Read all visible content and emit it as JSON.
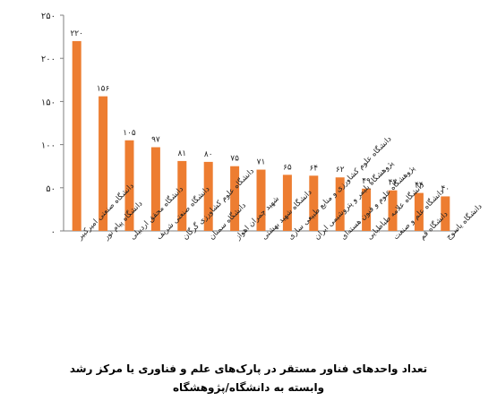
{
  "chart_data": {
    "type": "bar",
    "title": "تعداد واحدهای فناور مستقر در پارک‌های علم و فناوری یا مرکز رشد",
    "subtitle": "وابسته به دانشگاه/پژوهشگاه",
    "xlabel": "",
    "ylabel": "",
    "ylim": [
      0,
      250
    ],
    "yticks": [
      "۰",
      "۵۰",
      "۱۰۰",
      "۱۵۰",
      "۲۰۰",
      "۲۵۰"
    ],
    "grid": false,
    "bar_color": "#ED7D31",
    "categories": [
      "دانشگاه صنعتی امیرکبیر",
      "دانشگاه پیام نور",
      "دانشگاه محقق اردبیلی",
      "دانشگاه صنعتی شریف",
      "دانشگاه علوم کشاورزی گرگان",
      "دانشگاه سمنان",
      "شهید چمران اهواز",
      "دانشگاه شهید بهشتی",
      "دانشگاه علوم کشاورزی و منابع طبیعی ساری",
      "پژوهشگاه پلیمر و پتروشیمی ایران",
      "پژوهشگاه علوم و فنون هسته‌ای",
      "دانشگاه علامه طباطبایی",
      "دانشگاه علم و صنعت",
      "دانشگاه قم",
      "دانشگاه یاسوج"
    ],
    "values": [
      220,
      156,
      105,
      97,
      81,
      80,
      75,
      71,
      65,
      64,
      62,
      49,
      47,
      44,
      40
    ],
    "value_labels": [
      "۲۲۰",
      "۱۵۶",
      "۱۰۵",
      "۹۷",
      "۸۱",
      "۸۰",
      "۷۵",
      "۷۱",
      "۶۵",
      "۶۴",
      "۶۲",
      "۴۹",
      "۴۷",
      "۴۴",
      "۴۰"
    ]
  }
}
